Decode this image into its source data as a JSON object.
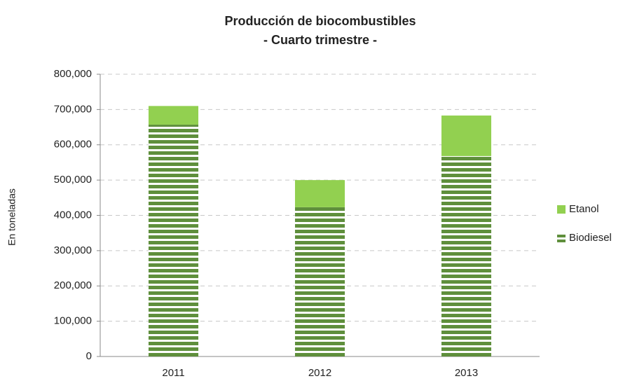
{
  "chart_data": {
    "type": "stacked_bar",
    "title": "Producción de biocombustibles",
    "subtitle": "- Cuarto trimestre -",
    "y_label": "En toneladas",
    "categories": [
      "2011",
      "2012",
      "2013"
    ],
    "series": [
      {
        "name": "Biodiesel",
        "color": "#5f8f3c",
        "values": [
          657000,
          423000,
          568000
        ]
      },
      {
        "name": "Etanol",
        "color": "#92d050",
        "values": [
          53000,
          77000,
          115000
        ]
      }
    ],
    "ylim": [
      0,
      800000
    ],
    "yticks": [
      0,
      {
        "value": 100000,
        "label": "100,000"
      },
      {
        "value": 200000,
        "label": "200,000"
      },
      {
        "value": 300000,
        "label": "300,000"
      },
      {
        "value": 400000,
        "label": "400,000"
      },
      {
        "value": 500000,
        "label": "500,000"
      },
      {
        "value": 600000,
        "label": "600,000"
      },
      {
        "value": 700000,
        "label": "700,000"
      },
      {
        "value": 800000,
        "label": "800,000"
      }
    ],
    "grid": true,
    "legend": "right"
  }
}
